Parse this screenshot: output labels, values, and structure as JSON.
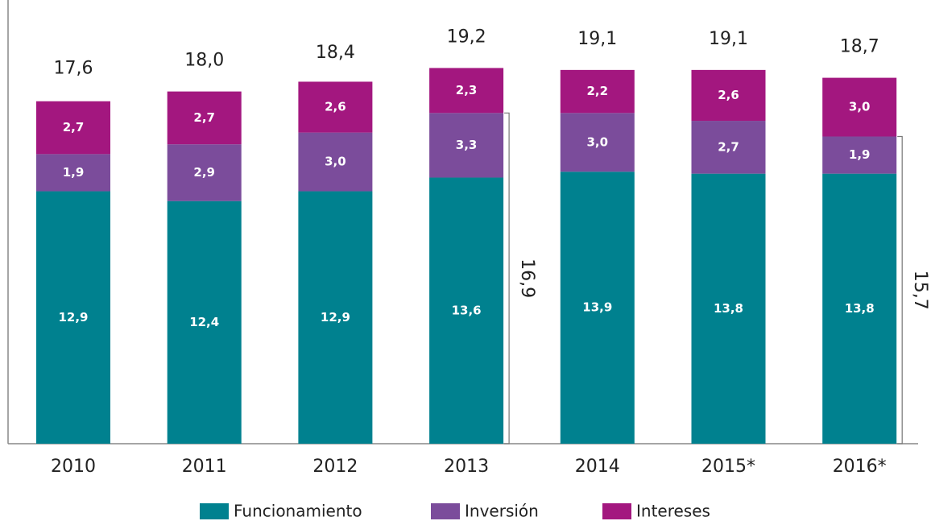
{
  "chart_data": {
    "type": "stacked_bar",
    "categories": [
      "2010",
      "2011",
      "2012",
      "2013",
      "2014",
      "2015*",
      "2016*"
    ],
    "series": [
      {
        "name": "Funcionamiento",
        "color": "#00818f",
        "values": [
          12.9,
          12.4,
          12.9,
          13.6,
          13.9,
          13.8,
          13.8
        ],
        "value_labels": [
          "12,9",
          "12,4",
          "12,9",
          "13,6",
          "13,9",
          "13,8",
          "13,8"
        ]
      },
      {
        "name": "Inversión",
        "color": "#7b4c9b",
        "values": [
          1.9,
          2.9,
          3.0,
          3.3,
          3.0,
          2.7,
          1.9
        ],
        "value_labels": [
          "1,9",
          "2,9",
          "3,0",
          "3,3",
          "3,0",
          "2,7",
          "1,9"
        ]
      },
      {
        "name": "Intereses",
        "color": "#a3177f",
        "values": [
          2.7,
          2.7,
          2.6,
          2.3,
          2.2,
          2.6,
          3.0
        ],
        "value_labels": [
          "2,7",
          "2,7",
          "2,6",
          "2,3",
          "2,2",
          "2,6",
          "3,0"
        ]
      }
    ],
    "totals": [
      17.6,
      18.0,
      18.4,
      19.2,
      19.1,
      19.1,
      18.7
    ],
    "total_labels": [
      "17,6",
      "18,0",
      "18,4",
      "19,2",
      "19,1",
      "19,1",
      "18,7"
    ],
    "annotations": [
      {
        "category": "2013",
        "value": 16.9,
        "label": "16,9"
      },
      {
        "category": "2016*",
        "value": 15.7,
        "label": "15,7"
      }
    ],
    "ylim": [
      0,
      20
    ]
  }
}
